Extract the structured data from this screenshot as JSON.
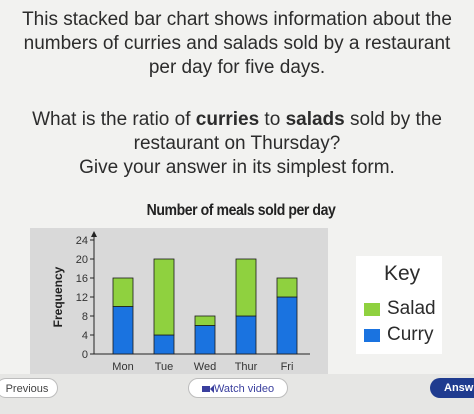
{
  "prompt": {
    "line1": "This stacked bar chart shows information about the",
    "line2": "numbers of curries and salads sold by a restaurant",
    "line3": "per day for five days."
  },
  "question": {
    "line1_pre": "What is the ratio of ",
    "line1_bold1": "curries",
    "line1_mid": " to ",
    "line1_bold2": "salads",
    "line1_post": " sold by the",
    "line2": "restaurant on Thursday?",
    "line3": "Give your answer in its simplest form."
  },
  "key": {
    "title": "Key",
    "items": [
      {
        "label": "Salad",
        "color": "#8fd13f"
      },
      {
        "label": "Curry",
        "color": "#1a73e0"
      }
    ]
  },
  "buttons": {
    "previous": "Previous",
    "video": "Watch video",
    "answer": "Answ"
  },
  "colors": {
    "salad": "#8fd13f",
    "curry": "#1a73e0",
    "plot_bg": "#d9d9d9"
  },
  "chart_data": {
    "type": "bar",
    "stacked": true,
    "title": "Number of meals sold per day",
    "xlabel": "",
    "ylabel": "Frequency",
    "categories": [
      "Mon",
      "Tue",
      "Wed",
      "Thur",
      "Fri"
    ],
    "series": [
      {
        "name": "Curry",
        "values": [
          10,
          4,
          6,
          8,
          12
        ]
      },
      {
        "name": "Salad",
        "values": [
          6,
          16,
          2,
          12,
          4
        ]
      }
    ],
    "ylim": [
      0,
      24
    ],
    "yticks": [
      0,
      4,
      8,
      12,
      16,
      20,
      24
    ],
    "grid": false,
    "legend": "right"
  }
}
